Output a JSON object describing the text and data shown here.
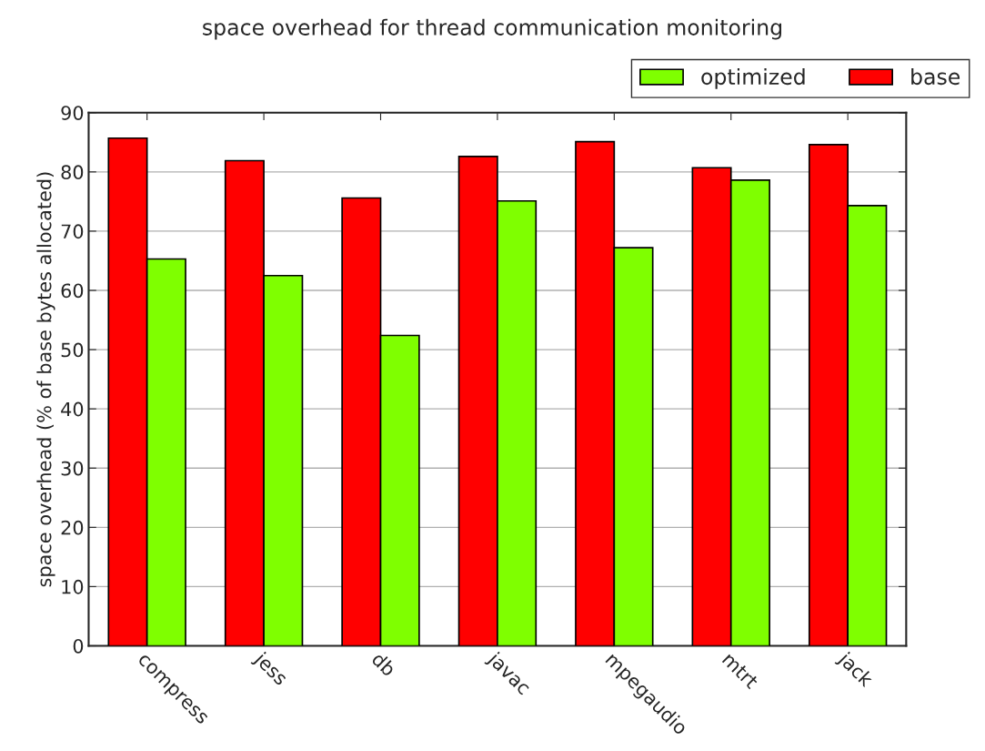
{
  "chart_data": {
    "type": "bar",
    "title": "space overhead for thread communication monitoring",
    "ylabel": "space overhead (% of base bytes allocated)",
    "categories": [
      "compress",
      "jess",
      "db",
      "javac",
      "mpegaudio",
      "mtrt",
      "jack"
    ],
    "series": [
      {
        "name": "base",
        "color": "#ff0000",
        "values": [
          85.7,
          81.9,
          75.6,
          82.6,
          85.1,
          80.7,
          84.6
        ]
      },
      {
        "name": "optimized",
        "color": "#7fff00",
        "values": [
          65.3,
          62.5,
          52.4,
          75.1,
          67.2,
          78.6,
          74.3
        ]
      }
    ],
    "ylim": [
      0,
      90
    ],
    "yticks": [
      0,
      10,
      20,
      30,
      40,
      50,
      60,
      70,
      80,
      90
    ],
    "grid": "y",
    "legend": "top right"
  }
}
